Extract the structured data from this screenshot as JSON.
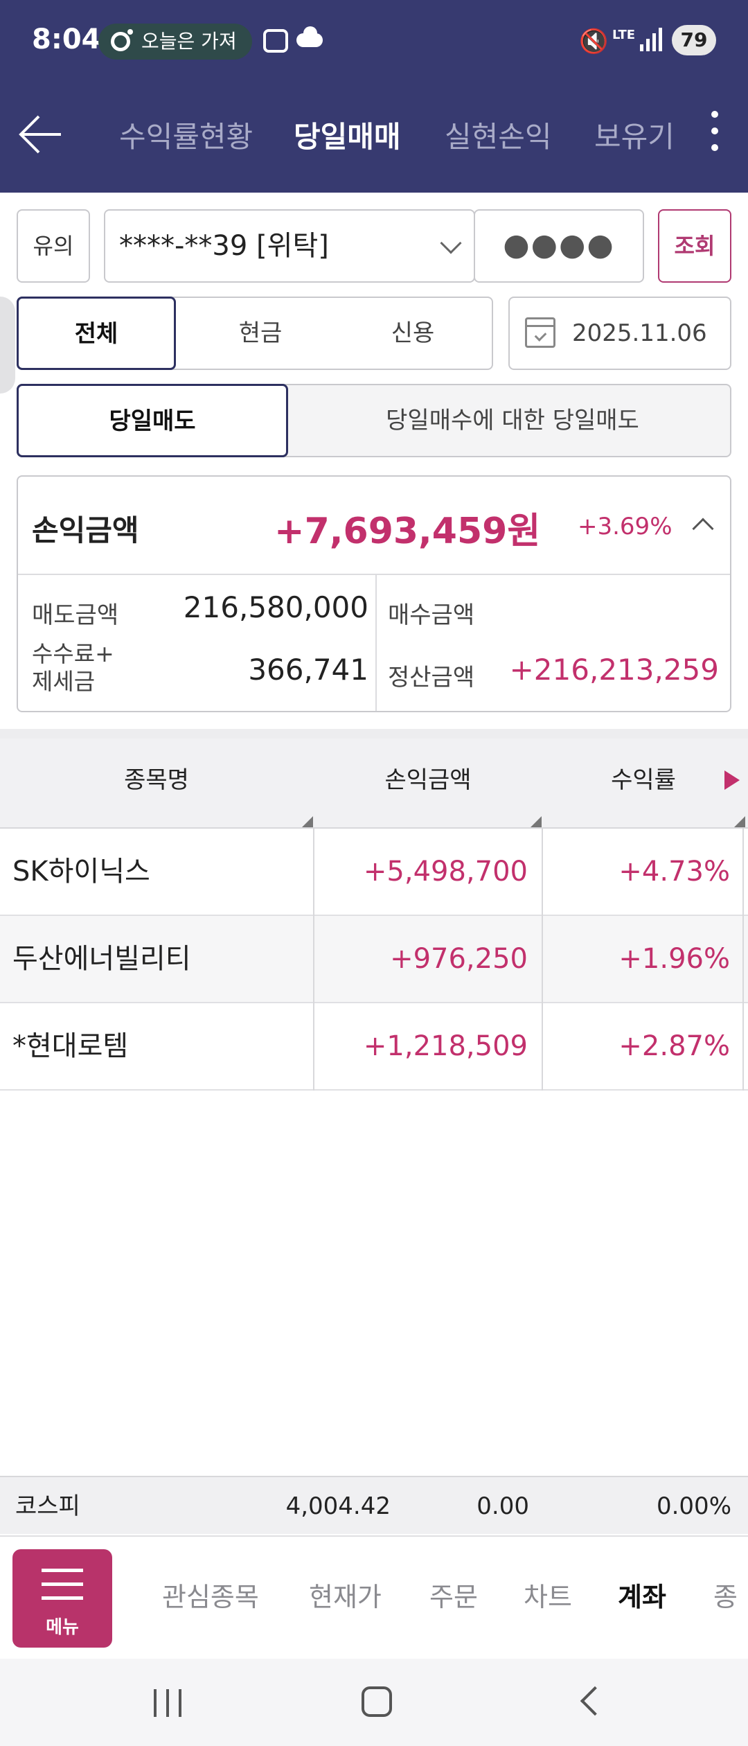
{
  "status_bar": {
    "time": "8:04",
    "notification_text": "오늘은 가져",
    "network": "LTE",
    "battery": "79"
  },
  "header": {
    "tabs": [
      {
        "label": "수익률현황",
        "active": false
      },
      {
        "label": "당일매매",
        "active": true
      },
      {
        "label": "실현손익",
        "active": false
      },
      {
        "label": "보유기",
        "active": false
      }
    ]
  },
  "account": {
    "tag": "유의",
    "number": "****-**39 [위탁]",
    "password_mask": "●●●●",
    "query_button": "조회"
  },
  "filters": {
    "types": [
      "전체",
      "현금",
      "신용"
    ],
    "selected_type": "전체",
    "date": "2025.11.06",
    "sell_modes": [
      "당일매도",
      "당일매수에 대한 당일매도"
    ],
    "selected_sell_mode": "당일매도"
  },
  "summary": {
    "profit_label": "손익금액",
    "profit_value": "+7,693,459원",
    "profit_rate": "+3.69%",
    "sell_amount_label": "매도금액",
    "sell_amount": "216,580,000",
    "buy_amount_label": "매수금액",
    "buy_amount": "",
    "fee_tax_label_line1": "수수료+",
    "fee_tax_label_line2": "제세금",
    "fee_tax": "366,741",
    "settlement_label": "정산금액",
    "settlement": "+216,213,259"
  },
  "table": {
    "columns": [
      "종목명",
      "손익금액",
      "수익률"
    ],
    "rows": [
      {
        "name": "SK하이닉스",
        "profit": "+5,498,700",
        "rate": "+4.73%"
      },
      {
        "name": "두산에너빌리티",
        "profit": "+976,250",
        "rate": "+1.96%"
      },
      {
        "name": "*현대로템",
        "profit": "+1,218,509",
        "rate": "+2.87%"
      }
    ]
  },
  "index_bar": {
    "name": "코스피",
    "value": "4,004.42",
    "change": "0.00",
    "change_rate": "0.00%"
  },
  "bottom_menu": {
    "menu_label": "메뉴",
    "items": [
      {
        "label": "관심종목",
        "active": false
      },
      {
        "label": "현재가",
        "active": false
      },
      {
        "label": "주문",
        "active": false
      },
      {
        "label": "차트",
        "active": false
      },
      {
        "label": "계좌",
        "active": true
      },
      {
        "label": "종",
        "active": false
      }
    ]
  },
  "colors": {
    "header_bg": "#373a70",
    "accent": "#c2306c",
    "menu_button": "#b8336a"
  }
}
